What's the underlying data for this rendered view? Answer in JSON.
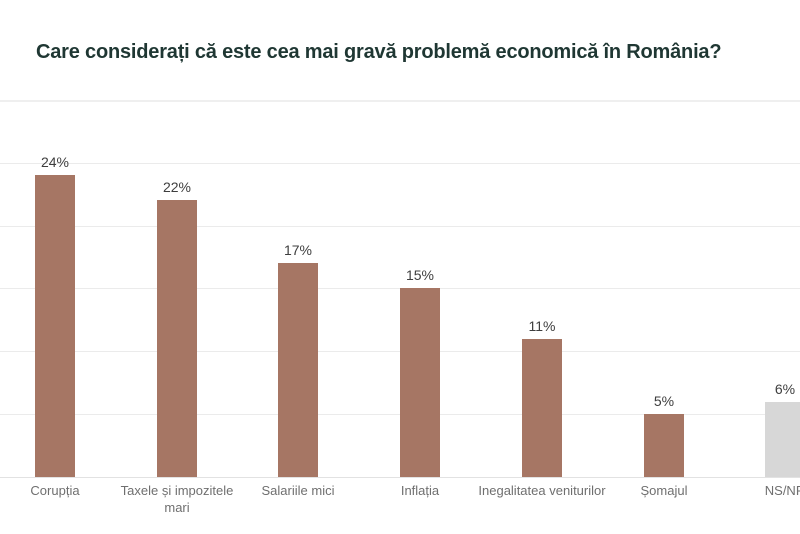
{
  "chart_data": {
    "type": "bar",
    "title": "Care considerați că este cea mai gravă problemă economică în România?",
    "title_color": "#1F3733",
    "xlabel": "",
    "ylabel": "",
    "categories": [
      "Corupția",
      "Taxele și impozitele mari",
      "Salariile mici",
      "Inflația",
      "Inegalitatea veniturilor",
      "Șomajul",
      "NS/NR"
    ],
    "values": [
      24,
      22,
      17,
      15,
      11,
      5,
      6
    ],
    "value_labels": [
      "24%",
      "22%",
      "17%",
      "15%",
      "11%",
      "5%",
      "6%"
    ],
    "bar_colors": [
      "#A67664",
      "#A67664",
      "#A67664",
      "#A67664",
      "#A67664",
      "#A67664",
      "#D7D7D7"
    ],
    "ylim": [
      0,
      30
    ],
    "grid": true,
    "gridline_step": 5,
    "gridline_values": [
      5,
      10,
      15,
      20,
      25,
      30
    ],
    "legend": "none",
    "axis_tick_labels_shown": false,
    "value_label_color": "#3E3E3E",
    "category_label_color": "#6F6F6F",
    "note": "last bar (NS/NR) clipped at right edge of image"
  }
}
